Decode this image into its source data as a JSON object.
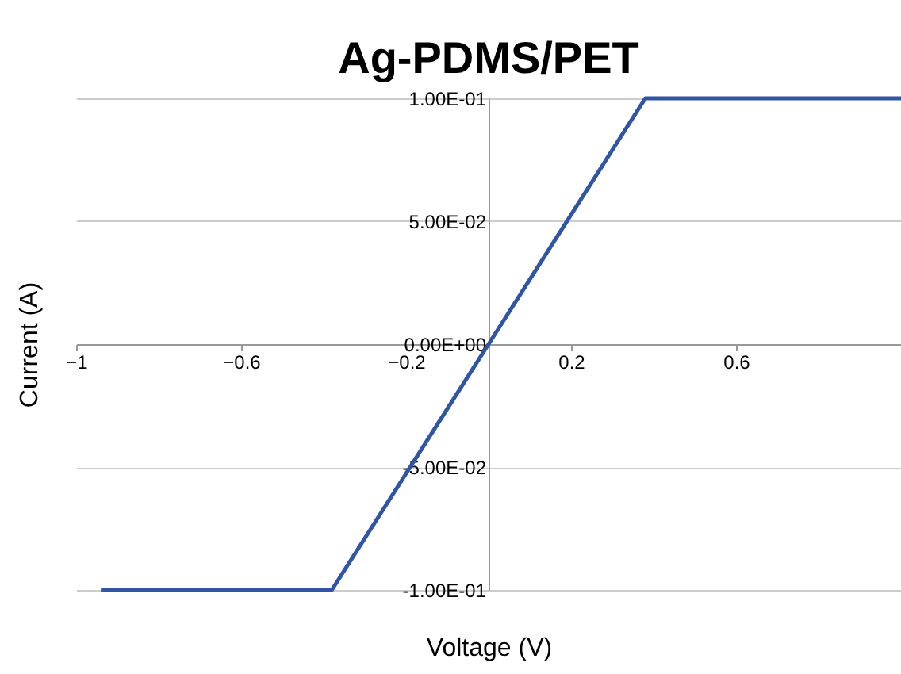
{
  "chart_data": {
    "type": "line",
    "title": "Ag-PDMS/PET",
    "xlabel": "Voltage (V)",
    "ylabel": "Current (A)",
    "x": [
      -0.94,
      -0.6,
      -0.4,
      -0.38,
      0,
      0.38,
      0.6,
      1
    ],
    "series": [
      {
        "color": "#2f55a4",
        "values": [
          -0.1,
          -0.1,
          -0.1,
          -0.1,
          0,
          0.1,
          0.1,
          0.1
        ]
      }
    ],
    "xlim": [
      -1,
      1
    ],
    "xticks": [
      -1,
      -0.6,
      -0.2,
      0.2,
      0.6
    ],
    "ylim": [
      -0.1,
      0.1
    ],
    "yticks": [
      {
        "value": -0.1,
        "label": "-1.00E-01"
      },
      {
        "value": -0.05,
        "label": "-5.00E-02"
      },
      {
        "value": 0,
        "label": "0.00E+00"
      },
      {
        "value": 0.05,
        "label": "5.00E-02"
      },
      {
        "value": 0.1,
        "label": "1.00E-01"
      }
    ],
    "grid": "y",
    "marker": "none",
    "line_style": "solid"
  }
}
